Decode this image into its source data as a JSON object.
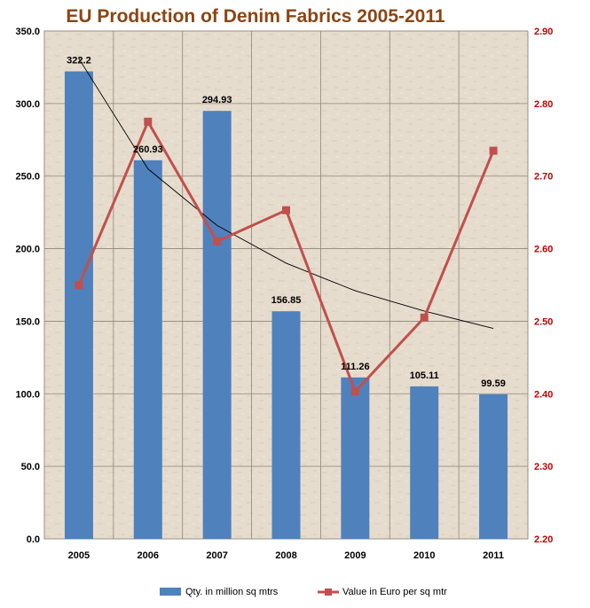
{
  "chart_data": {
    "type": "bar",
    "title": "EU Production of Denim Fabrics 2005-2011",
    "categories": [
      "2005",
      "2006",
      "2007",
      "2008",
      "2009",
      "2010",
      "2011"
    ],
    "series": [
      {
        "name": "Qty. in million sq mtrs",
        "type": "bar",
        "axis": "left",
        "color": "#4F81BD",
        "values": [
          322.2,
          260.93,
          294.93,
          156.85,
          111.26,
          105.11,
          99.59
        ],
        "data_labels": [
          "322.2",
          "260.93",
          "294.93",
          "156.85",
          "111.26",
          "105.11",
          "99.59"
        ]
      },
      {
        "name": "Value in Euro per sq mtr",
        "type": "line",
        "axis": "right",
        "color": "#C0504D",
        "values": [
          2.55,
          2.775,
          2.61,
          2.653,
          2.403,
          2.505,
          2.735
        ]
      }
    ],
    "trendline": {
      "series": "Qty. in million sq mtrs",
      "type": "power",
      "color": "#000000",
      "values": [
        331,
        255,
        216,
        190,
        171,
        157,
        145
      ]
    },
    "left_axis": {
      "ylim": [
        0,
        350
      ],
      "step": 50,
      "tick_labels": [
        "0.0",
        "50.0",
        "100.0",
        "150.0",
        "200.0",
        "250.0",
        "300.0",
        "350.0"
      ]
    },
    "right_axis": {
      "ylim": [
        2.2,
        2.9
      ],
      "step": 0.1,
      "tick_labels": [
        "2.20",
        "2.30",
        "2.40",
        "2.50",
        "2.60",
        "2.70",
        "2.80",
        "2.90"
      ],
      "color": "#C00000"
    },
    "grid": true,
    "legend_position": "bottom"
  }
}
